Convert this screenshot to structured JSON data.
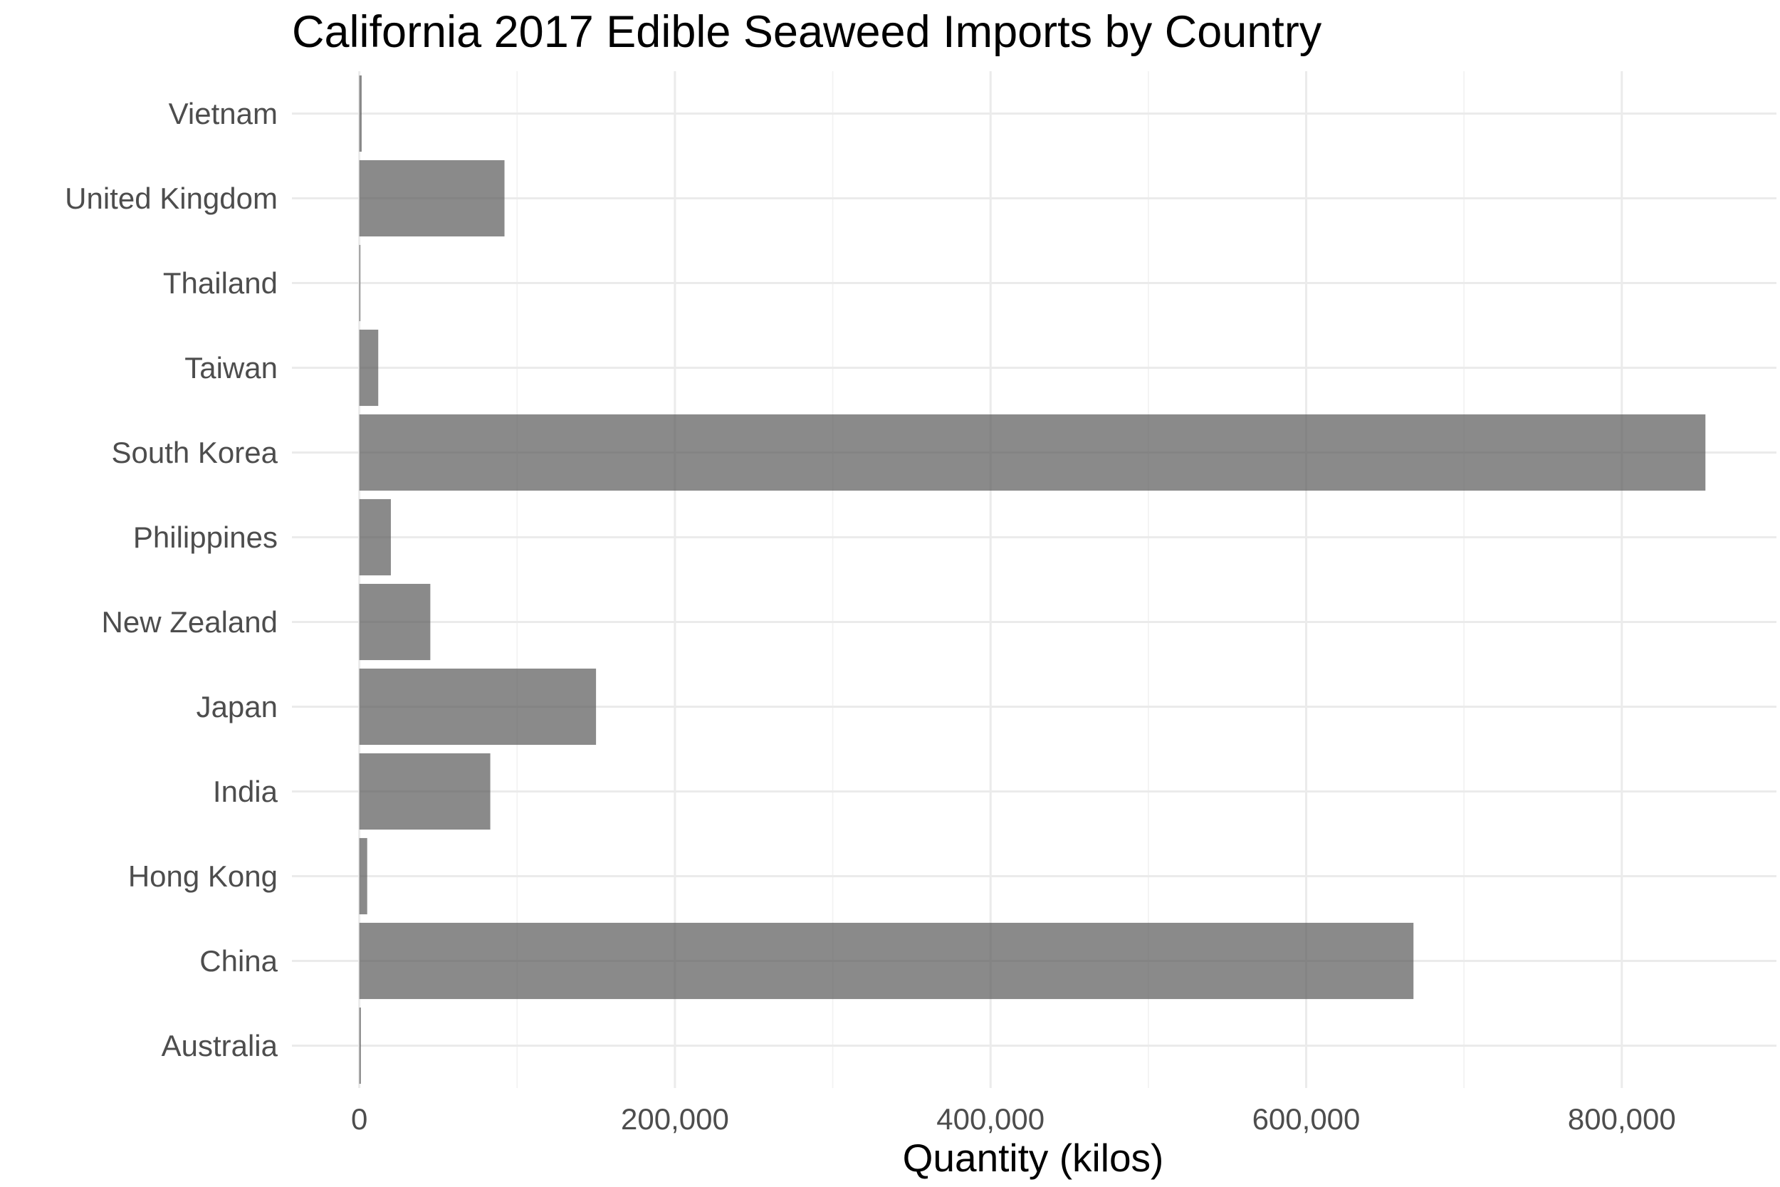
{
  "chart_data": {
    "type": "bar",
    "orientation": "horizontal",
    "title": "California 2017 Edible Seaweed Imports by Country",
    "xlabel": "Quantity (kilos)",
    "ylabel": "",
    "categories": [
      "Australia",
      "China",
      "Hong Kong",
      "India",
      "Japan",
      "New Zealand",
      "Philippines",
      "South Korea",
      "Taiwan",
      "Thailand",
      "United Kingdom",
      "Vietnam"
    ],
    "values": [
      1000,
      668000,
      5000,
      83000,
      150000,
      45000,
      20000,
      853000,
      12000,
      500,
      92000,
      1500
    ],
    "xlim": [
      -42700,
      898000
    ],
    "xticks": [
      0,
      200000,
      400000,
      600000,
      800000
    ],
    "xtick_labels": [
      "0",
      "200,000",
      "400,000",
      "600,000",
      "800,000"
    ],
    "grid": true,
    "bar_color": "#595959",
    "bar_opacity": 0.7
  }
}
